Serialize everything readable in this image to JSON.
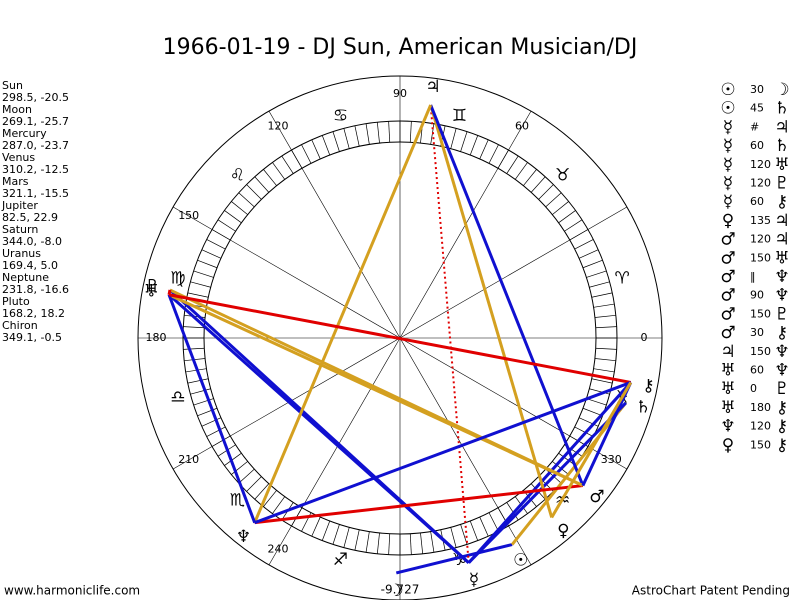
{
  "title": "1966-01-19 - DJ Sun, American Musician/DJ",
  "planets": [
    {
      "name": "Sun",
      "glyph": "☉",
      "position": "298.5, -20.5"
    },
    {
      "name": "Moon",
      "glyph": "☽",
      "position": "269.1, -25.7"
    },
    {
      "name": "Mercury",
      "glyph": "☿",
      "position": "287.0, -23.7"
    },
    {
      "name": "Venus",
      "glyph": "♀",
      "position": "310.2, -12.5"
    },
    {
      "name": "Mars",
      "glyph": "♂",
      "position": "321.1, -15.5"
    },
    {
      "name": "Jupiter",
      "glyph": "♃",
      "position": "82.5, 22.9"
    },
    {
      "name": "Saturn",
      "glyph": "♄",
      "position": "344.0, -8.0"
    },
    {
      "name": "Uranus",
      "glyph": "♅",
      "position": "169.4, 5.0"
    },
    {
      "name": "Neptune",
      "glyph": "♆",
      "position": "231.8, -16.6"
    },
    {
      "name": "Pluto",
      "glyph": "♇",
      "position": "168.2, 18.2"
    },
    {
      "name": "Chiron",
      "glyph": "⚷",
      "position": "349.1, -0.5"
    }
  ],
  "signs": [
    "♈",
    "♉",
    "♊",
    "♋",
    "♌",
    "♍",
    "♎",
    "♏",
    "♐",
    "♑",
    "♒",
    "♓"
  ],
  "degree_labels": [
    0,
    60,
    90,
    120,
    150,
    180,
    210,
    240,
    330
  ],
  "bottom_label": "-9.727",
  "aspects": [
    {
      "from": "☉",
      "aspect": "30",
      "to": "☽"
    },
    {
      "from": "☉",
      "aspect": "45",
      "to": "♄"
    },
    {
      "from": "☿",
      "aspect": "#",
      "to": "♃"
    },
    {
      "from": "☿",
      "aspect": "60",
      "to": "♄"
    },
    {
      "from": "☿",
      "aspect": "120",
      "to": "♅"
    },
    {
      "from": "☿",
      "aspect": "120",
      "to": "♇"
    },
    {
      "from": "☿",
      "aspect": "60",
      "to": "⚷"
    },
    {
      "from": "♀",
      "aspect": "135",
      "to": "♃"
    },
    {
      "from": "♂",
      "aspect": "120",
      "to": "♃"
    },
    {
      "from": "♂",
      "aspect": "150",
      "to": "♅"
    },
    {
      "from": "♂",
      "aspect": "‖",
      "to": "♆"
    },
    {
      "from": "♂",
      "aspect": "90",
      "to": "♆"
    },
    {
      "from": "♂",
      "aspect": "150",
      "to": "♇"
    },
    {
      "from": "♂",
      "aspect": "30",
      "to": "⚷"
    },
    {
      "from": "♃",
      "aspect": "150",
      "to": "♆"
    },
    {
      "from": "♅",
      "aspect": "60",
      "to": "♆"
    },
    {
      "from": "♅",
      "aspect": "0",
      "to": "♇"
    },
    {
      "from": "♅",
      "aspect": "180",
      "to": "⚷"
    },
    {
      "from": "♆",
      "aspect": "120",
      "to": "⚷"
    },
    {
      "from": "♀",
      "aspect": "150",
      "to": "⚷"
    }
  ],
  "footer_left": "www.harmoniclife.com",
  "footer_right": "AstroChart Patent Pending"
}
